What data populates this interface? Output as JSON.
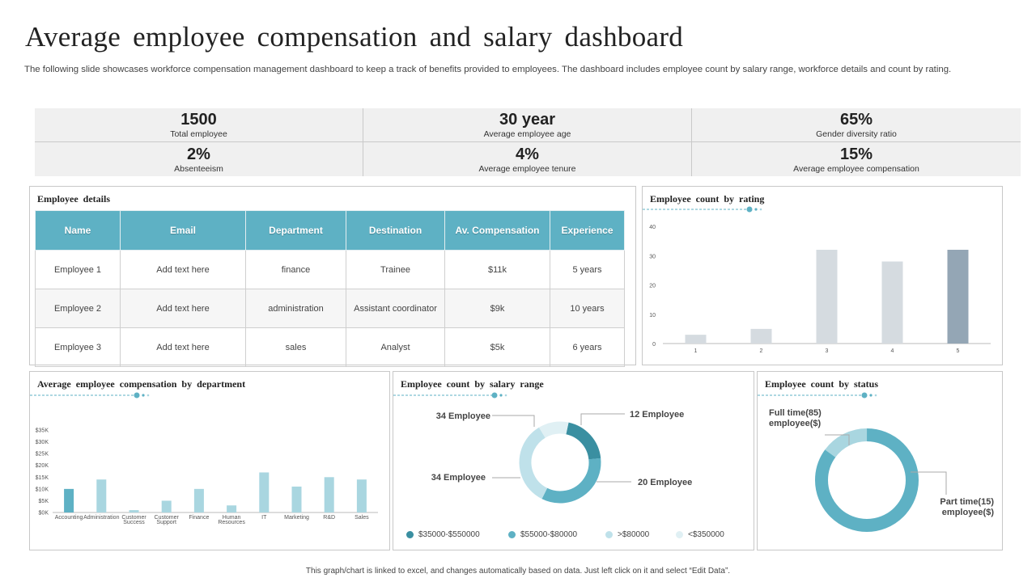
{
  "title": "Average employee compensation and salary dashboard",
  "subtitle": "The following slide showcases workforce compensation management dashboard to keep a track of benefits provided to employees. The dashboard includes employee count by salary range, workforce details and count by rating.",
  "kpis": [
    {
      "value": "1500",
      "label": "Total employee"
    },
    {
      "value": "30 year",
      "label": "Average employee age"
    },
    {
      "value": "65%",
      "label": "Gender diversity ratio"
    },
    {
      "value": "2%",
      "label": "Absenteeism"
    },
    {
      "value": "4%",
      "label": "Average employee tenure"
    },
    {
      "value": "15%",
      "label": "Average employee compensation"
    }
  ],
  "employee_details": {
    "title": "Employee  details",
    "columns": [
      "Name",
      "Email",
      "Department",
      "Destination",
      "Av. Compensation",
      "Experience"
    ],
    "rows": [
      [
        "Employee  1",
        "Add text here",
        "finance",
        "Trainee",
        "$11k",
        "5 years"
      ],
      [
        "Employee  2",
        "Add text here",
        "administration",
        "Assistant coordinator",
        "$9k",
        "10 years"
      ],
      [
        "Employee  3",
        "Add text here",
        "sales",
        "Analyst",
        "$5k",
        "6 years"
      ]
    ]
  },
  "rating_panel_title": "Employee  count by rating",
  "department_panel_title": "Average employee compensation  by department",
  "salary_panel_title": "Employee  count by salary range",
  "status_panel_title": "Employee  count by status",
  "footer": "This graph/chart is linked to excel, and changes automatically based on data. Just left click on it and select “Edit Data”.",
  "colors": {
    "teal": "#5eb1c4",
    "dark_teal": "#3a8fa1",
    "grey_bar": "#d5dbe0",
    "slate_bar": "#94a6b5"
  },
  "chart_data": [
    {
      "type": "bar",
      "categories": [
        "1",
        "2",
        "3",
        "4",
        "5"
      ],
      "values": [
        3,
        5,
        32,
        28,
        32
      ],
      "ylim": [
        0,
        40
      ],
      "yticks": [
        "0",
        "10",
        "20",
        "30",
        "40"
      ],
      "bar_colors": [
        "#d5dbe0",
        "#d5dbe0",
        "#d5dbe0",
        "#d5dbe0",
        "#94a6b5"
      ]
    },
    {
      "type": "bar",
      "categories": [
        "Accounting",
        "Administration",
        "Customer Success",
        "Customer Support",
        "Finance",
        "Human Resources",
        "IT",
        "Marketing",
        "R&D",
        "Sales"
      ],
      "values": [
        10,
        14,
        1,
        5,
        10,
        3,
        17,
        11,
        15,
        14
      ],
      "ylim": [
        0,
        35
      ],
      "yticks": [
        "$0K",
        "$5K",
        "$10K",
        "$15K",
        "$20K",
        "$25K",
        "$30K",
        "$35K"
      ],
      "bar_colors": [
        "#5eb1c4",
        "#a9d6e0",
        "#a9d6e0",
        "#a9d6e0",
        "#a9d6e0",
        "#a9d6e0",
        "#a9d6e0",
        "#a9d6e0",
        "#a9d6e0",
        "#a9d6e0"
      ]
    },
    {
      "type": "pie",
      "style": "donut",
      "slices": [
        {
          "label": "$35000-$550000",
          "value": 20,
          "color": "#3a8fa1",
          "callout": "20 Employee"
        },
        {
          "label": "$55000-$80000",
          "value": 34,
          "color": "#5eb1c4",
          "callout": "34 Employee"
        },
        {
          "label": ">$80000",
          "value": 34,
          "color": "#bfe1ea",
          "callout": "34 Employee"
        },
        {
          "label": "<$350000",
          "value": 12,
          "color": "#e0f0f4",
          "callout": "12 Employee"
        }
      ]
    },
    {
      "type": "pie",
      "style": "donut",
      "slices": [
        {
          "label": "Full time(85) employee($)",
          "value": 85,
          "color": "#5eb1c4"
        },
        {
          "label": "Part time(15) employee($)",
          "value": 15,
          "color": "#a9d6e0"
        }
      ]
    }
  ]
}
